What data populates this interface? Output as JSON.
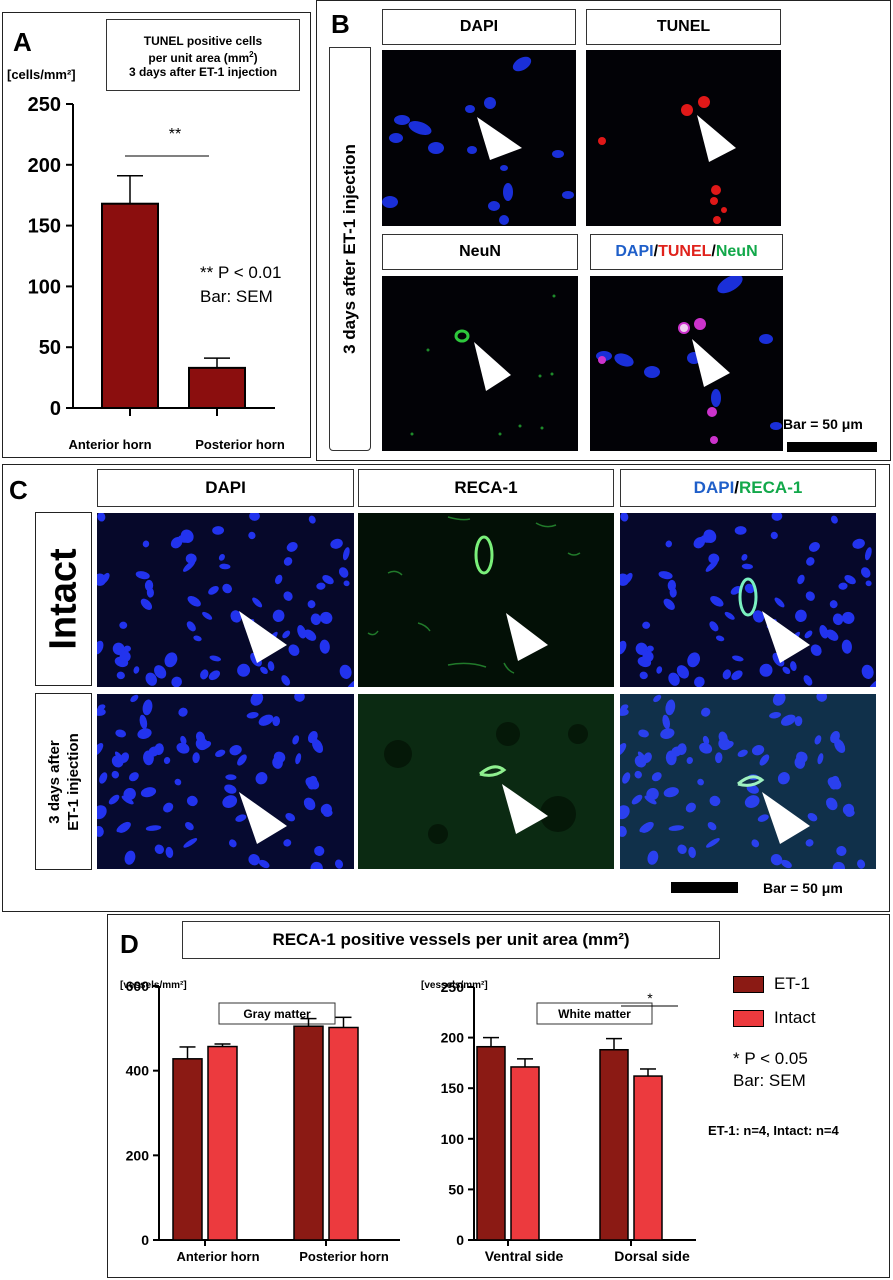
{
  "panel_a": {
    "label": "A",
    "title_line1": "TUNEL positive cells",
    "title_line2": "per unit area (mm",
    "title_line2_sup": "2",
    "title_line2_end": ")",
    "title_line3": "3 days after ET-1 injection",
    "unit": "[cells/mm²]",
    "sig_marker": "**",
    "note_line1": "** P < 0.01",
    "note_line2": "Bar: SEM"
  },
  "panel_b": {
    "label": "B",
    "headers": [
      "DAPI",
      "TUNEL",
      "NeuN"
    ],
    "merge_header": {
      "dapi": "DAPI",
      "tunel": "TUNEL",
      "neun": "NeuN",
      "sep": "/"
    },
    "side_label": "3 days after ET-1 injection",
    "scale_label": "Bar = 50 μm"
  },
  "panel_c": {
    "label": "C",
    "headers": [
      "DAPI",
      "RECA-1"
    ],
    "merge_header": {
      "dapi": "DAPI",
      "reca": "RECA-1",
      "sep": "/"
    },
    "row1_label": "Intact",
    "row2_label_line1": "3 days after",
    "row2_label_line2": "ET-1 injection",
    "scale_label": "Bar = 50 μm"
  },
  "panel_d": {
    "label": "D",
    "title": "RECA-1 positive vessels per unit area (mm²)",
    "unit_left": "[vessels/mm²]",
    "unit_right": "[vessels/mm²]",
    "legend": [
      {
        "name": "ET-1",
        "color": "#8b1a14"
      },
      {
        "name": "Intact",
        "color": "#ec3a3e"
      }
    ],
    "sig_marker": "*",
    "note_line1": "* P < 0.05",
    "note_line2": "Bar: SEM",
    "n_note": "ET-1: n=4, Intact: n=4"
  },
  "chart_data": [
    {
      "type": "bar",
      "panel": "A",
      "categories": [
        "Anterior horn",
        "Posterior horn"
      ],
      "series": [
        {
          "values": [
            168,
            33
          ],
          "sem": [
            23,
            8
          ],
          "color": "#8b0e0e"
        }
      ],
      "ylim": [
        0,
        250
      ],
      "yticks": [
        0,
        50,
        100,
        150,
        200,
        250
      ],
      "ylabel": "[cells/mm²]"
    },
    {
      "type": "bar",
      "panel": "D-left",
      "title": "Gray matter",
      "categories": [
        "Anterior horn",
        "Posterior horn"
      ],
      "series": [
        {
          "name": "ET-1",
          "values": [
            428,
            505
          ],
          "sem": [
            28,
            18
          ],
          "color": "#8b1a14"
        },
        {
          "name": "Intact",
          "values": [
            457,
            502
          ],
          "sem": [
            6,
            24
          ],
          "color": "#ec3a3e"
        }
      ],
      "ylim": [
        0,
        600
      ],
      "yticks": [
        0,
        200,
        400,
        600
      ],
      "ylabel": "[vessels/mm²]"
    },
    {
      "type": "bar",
      "panel": "D-right",
      "title": "White matter",
      "categories": [
        "Ventral side",
        "Dorsal side"
      ],
      "series": [
        {
          "name": "ET-1",
          "values": [
            191,
            188
          ],
          "sem": [
            9,
            11
          ],
          "color": "#8b1a14"
        },
        {
          "name": "Intact",
          "values": [
            171,
            162
          ],
          "sem": [
            8,
            7
          ],
          "color": "#ec3a3e"
        }
      ],
      "ylim": [
        0,
        250
      ],
      "yticks": [
        0,
        50,
        100,
        150,
        200,
        250
      ],
      "ylabel": "[vessels/mm²]"
    }
  ]
}
